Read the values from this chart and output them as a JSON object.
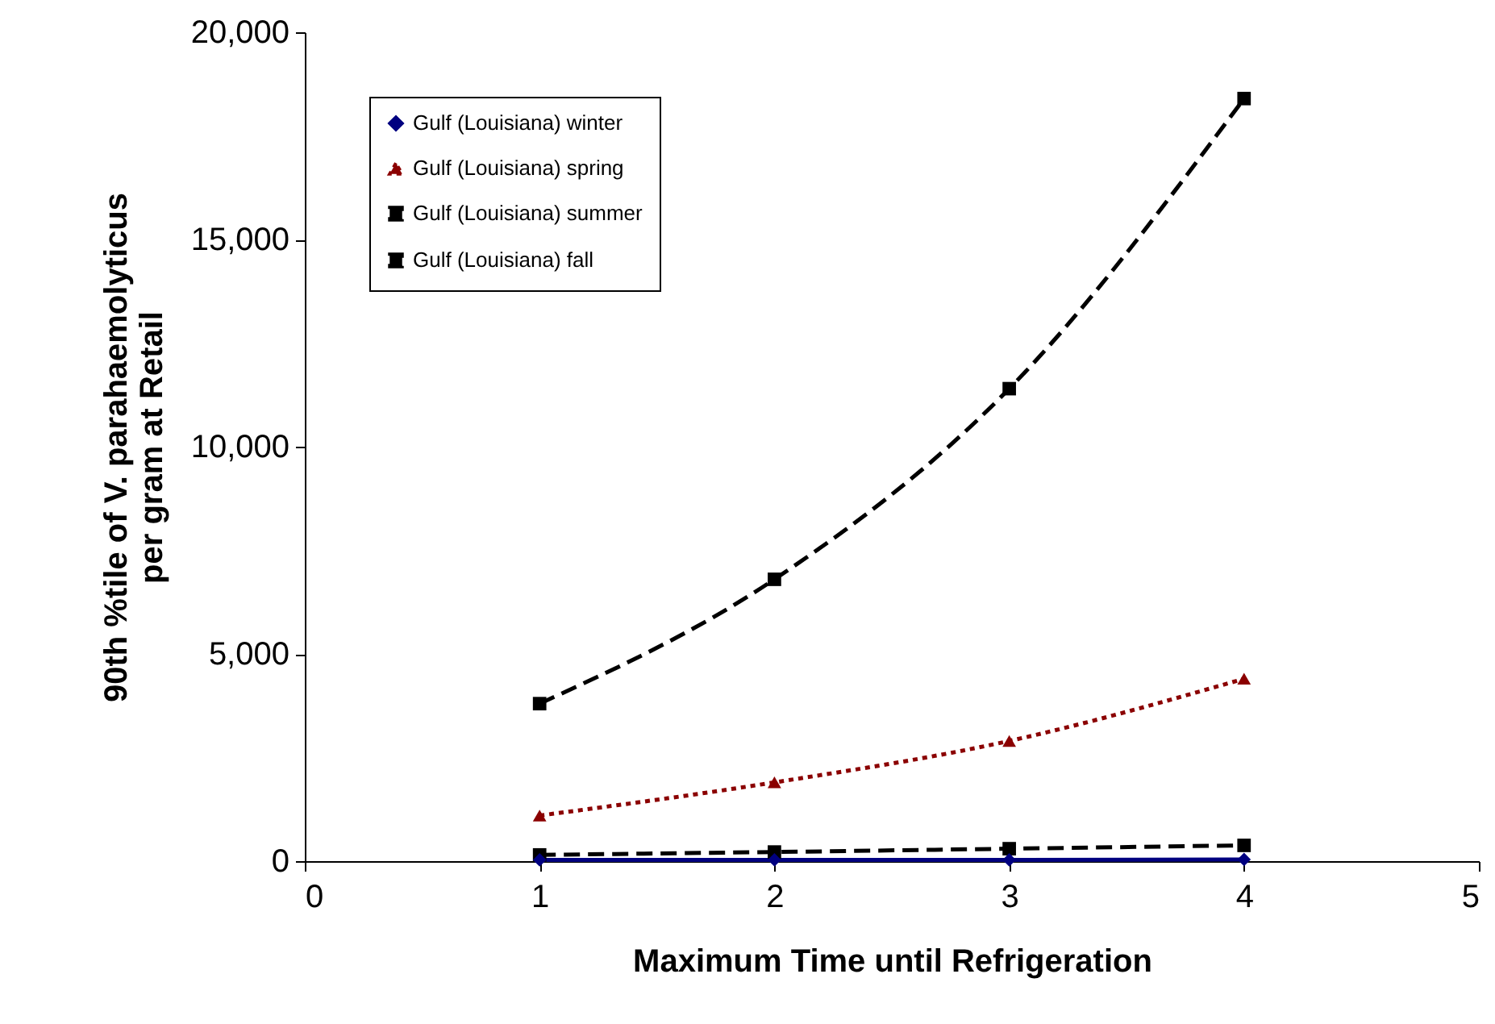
{
  "chart_data": {
    "type": "line",
    "xlabel": "Maximum Time until Refrigeration",
    "ylabel": "90th %tile of V. parahaemolyticus\nper gram at Retail",
    "x": [
      1,
      2,
      3,
      4
    ],
    "series": [
      {
        "name": "Gulf (Louisiana) winter",
        "color": "#000080",
        "values": [
          30,
          30,
          30,
          40
        ],
        "marker": "diamond",
        "line_style": "solid"
      },
      {
        "name": "Gulf (Louisiana) spring",
        "color": "#8b0000",
        "values": [
          1100,
          1900,
          2900,
          4400
        ],
        "marker": "triangle",
        "line_style": "dotted"
      },
      {
        "name": "Gulf (Louisiana) summer",
        "color": "#000000",
        "values": [
          3800,
          6800,
          11400,
          18400
        ],
        "marker": "square",
        "line_style": "dashed"
      },
      {
        "name": "Gulf (Louisiana) fall",
        "color": "#000000",
        "values": [
          150,
          220,
          300,
          380
        ],
        "marker": "square",
        "line_style": "dashed"
      }
    ],
    "xlim": [
      0,
      5
    ],
    "xticks": [
      0,
      1,
      2,
      3,
      4,
      5
    ],
    "ylim": [
      0,
      20000
    ],
    "yticks": [
      {
        "value": 0,
        "label": "0"
      },
      {
        "value": 5000,
        "label": "5,000"
      },
      {
        "value": 10000,
        "label": "10,000"
      },
      {
        "value": 15000,
        "label": "15,000"
      },
      {
        "value": 20000,
        "label": "20,000"
      }
    ],
    "grid": false,
    "legend": "top left"
  }
}
